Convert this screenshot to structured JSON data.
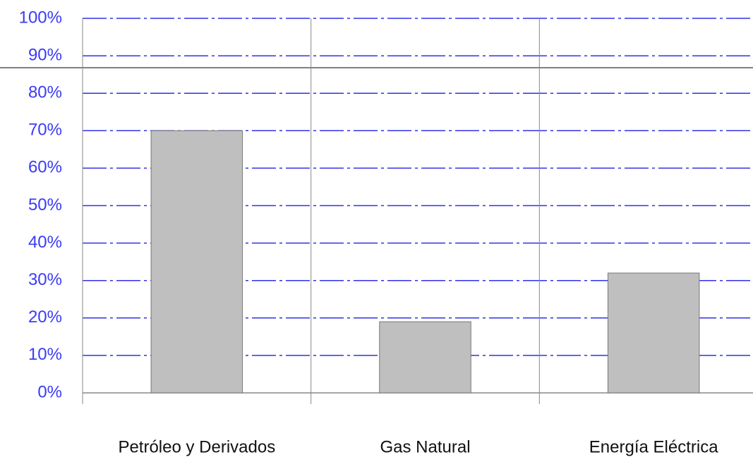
{
  "chart_data": {
    "type": "bar",
    "categories": [
      "Petróleo y Derivados",
      "Gas Natural",
      "Energía Eléctrica"
    ],
    "values": [
      70,
      19,
      32
    ],
    "color": "#bfbfbf",
    "ylim": [
      0,
      100
    ],
    "yticks": [
      {
        "value": 0,
        "label": "0%"
      },
      {
        "value": 10,
        "label": "10%"
      },
      {
        "value": 20,
        "label": "20%"
      },
      {
        "value": 30,
        "label": "30%"
      },
      {
        "value": 40,
        "label": "40%"
      },
      {
        "value": 50,
        "label": "50%"
      },
      {
        "value": 60,
        "label": "60%"
      },
      {
        "value": 70,
        "label": "70%"
      },
      {
        "value": 80,
        "label": "80%"
      },
      {
        "value": 90,
        "label": "90%"
      },
      {
        "value": 100,
        "label": "100%"
      }
    ],
    "grid": true
  }
}
